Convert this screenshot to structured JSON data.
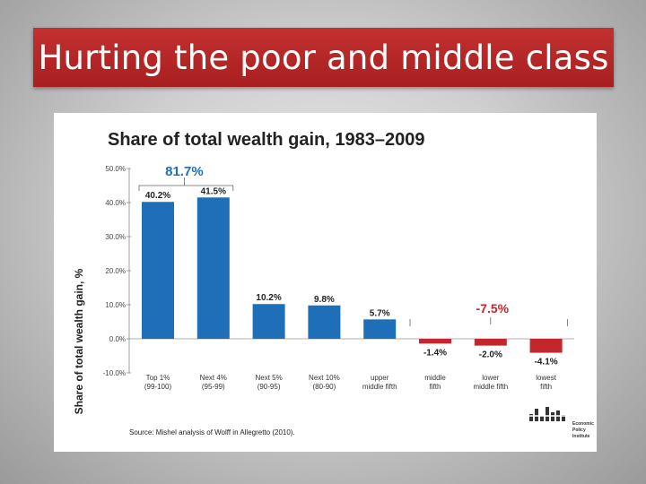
{
  "slide": {
    "title": "Hurting the poor and middle class"
  },
  "chart_data": {
    "type": "bar",
    "title": "Share of total wealth gain, 1983–2009",
    "ylabel": "Share of total wealth gain, %",
    "xlabel": "",
    "ylim": [
      -10,
      50
    ],
    "yticks": [
      "50.0%",
      "40.0%",
      "30.0%",
      "20.0%",
      "10.0%",
      "0.0%",
      "-10.0%"
    ],
    "ytick_values": [
      50,
      40,
      30,
      20,
      10,
      0,
      -10
    ],
    "categories": [
      [
        "Top 1%",
        "(99-100)"
      ],
      [
        "Next 4%",
        "(95-99)"
      ],
      [
        "Next 5%",
        "(90-95)"
      ],
      [
        "Next 10%",
        "(80-90)"
      ],
      [
        "upper",
        "middle fifth"
      ],
      [
        "middle",
        "fifth"
      ],
      [
        "lower",
        "middle fifth"
      ],
      [
        "lowest",
        "fifth"
      ]
    ],
    "values": [
      40.2,
      41.5,
      10.2,
      9.8,
      5.7,
      -1.4,
      -2.0,
      -4.1
    ],
    "value_labels": [
      "40.2%",
      "41.5%",
      "10.2%",
      "9.8%",
      "5.7%",
      "-1.4%",
      "-2.0%",
      "-4.1%"
    ],
    "colors": {
      "positive": "#1f6fb8",
      "negative": "#c1272d",
      "top_annotation": "#1f6fb8",
      "bottom_annotation": "#c1272d"
    },
    "annotations": {
      "top_group_label": "81.7%",
      "bottom_group_label": "-7.5%"
    },
    "source": "Source: Mishel analysis of Wolff in Allegretto (2010).",
    "logo": {
      "lines": [
        "Economic",
        "Policy",
        "Institute"
      ]
    },
    "grid": false
  }
}
